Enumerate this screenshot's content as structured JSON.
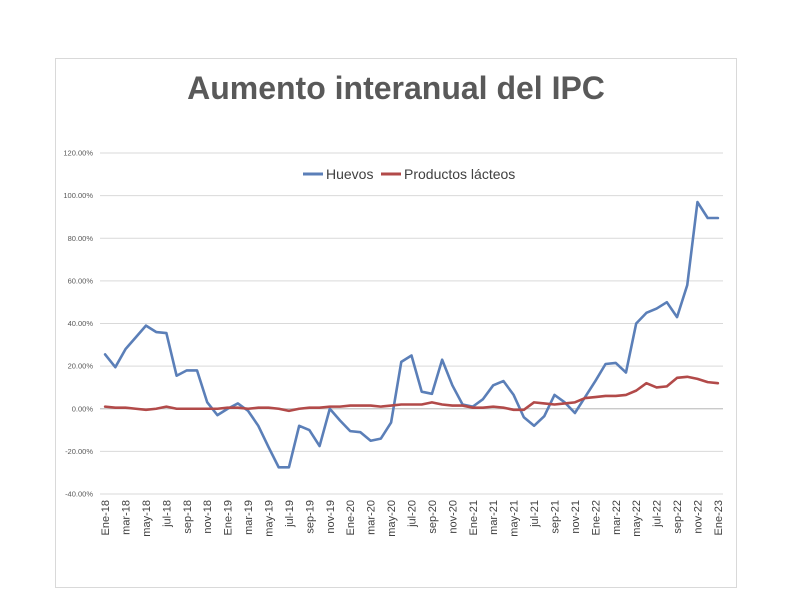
{
  "chart_data": {
    "type": "line",
    "title": "Aumento interanual del IPC",
    "xlabel": "",
    "ylabel": "",
    "ylim": [
      -40,
      120
    ],
    "y_ticks": [
      "120.00%",
      "100.00%",
      "80.00%",
      "60.00%",
      "40.00%",
      "20.00%",
      "0.00%",
      "-20.00%",
      "-40.00%"
    ],
    "y_tick_values": [
      120,
      100,
      80,
      60,
      40,
      20,
      0,
      -20,
      -40
    ],
    "x_tick_labels": [
      "Ene-18",
      "mar-18",
      "may-18",
      "jul-18",
      "sep-18",
      "nov-18",
      "Ene-19",
      "mar-19",
      "may-19",
      "jul-19",
      "sep-19",
      "nov-19",
      "Ene-20",
      "mar-20",
      "may-20",
      "jul-20",
      "sep-20",
      "nov-20",
      "Ene-21",
      "mar-21",
      "may-21",
      "jul-21",
      "sep-21",
      "nov-21",
      "Ene-22",
      "mar-22",
      "may-22",
      "jul-22",
      "sep-22",
      "nov-22",
      "Ene-23"
    ],
    "legend_position": "top",
    "grid": true,
    "series": [
      {
        "name": "Huevos",
        "color": "#5b7fb8",
        "values": [
          25.5,
          19.5,
          28,
          33.5,
          39,
          36,
          35.5,
          15.5,
          18,
          18,
          3,
          -3,
          0,
          2.5,
          -1,
          -8,
          -18,
          -27.5,
          -27.5,
          -8,
          -10,
          -17.5,
          0,
          -5.5,
          -10.5,
          -11,
          -15,
          -14,
          -6.5,
          22,
          25,
          8,
          7,
          23,
          11,
          2,
          1,
          4.5,
          11,
          13,
          6.5,
          -4,
          -8,
          -3.5,
          6.5,
          3,
          -2,
          5.5,
          13,
          21,
          21.5,
          17,
          40,
          45,
          47,
          50,
          43,
          58,
          97,
          89.5,
          89.5
        ]
      },
      {
        "name": "Productos lácteos",
        "color": "#b24a49",
        "values": [
          1,
          0.5,
          0.5,
          0,
          -0.5,
          0,
          1,
          0,
          0,
          0,
          0,
          0,
          0.5,
          0.5,
          0,
          0.5,
          0.5,
          0,
          -1,
          0,
          0.5,
          0.5,
          1,
          1,
          1.5,
          1.5,
          1.5,
          1,
          1.5,
          2,
          2,
          2,
          3,
          2,
          1.5,
          1.5,
          0.5,
          0.5,
          1,
          0.5,
          -0.5,
          -0.5,
          3,
          2.5,
          2,
          2.5,
          3,
          5,
          5.5,
          6,
          6,
          6.5,
          8.5,
          12,
          10,
          10.5,
          14.5,
          15,
          14,
          12.5,
          12
        ]
      }
    ]
  }
}
